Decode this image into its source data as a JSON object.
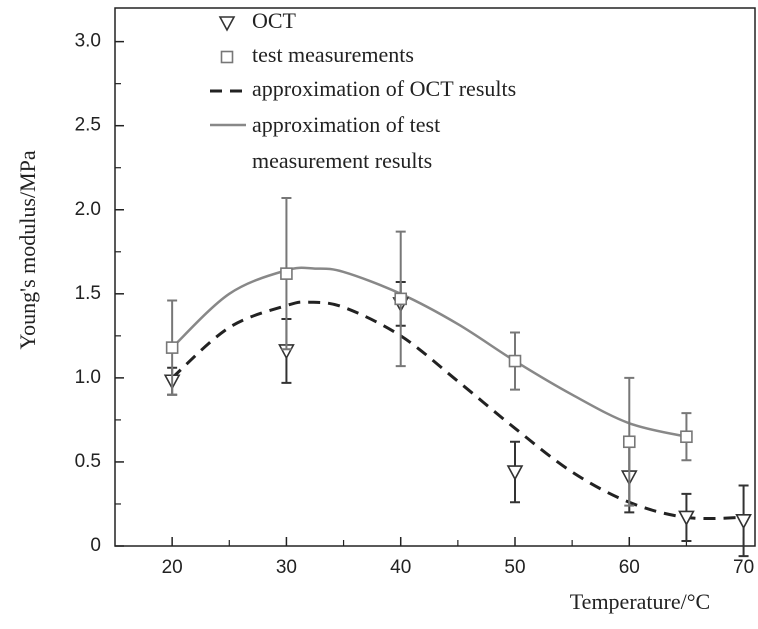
{
  "chart_data": {
    "type": "scatter",
    "xlabel": "Temperature/°C",
    "ylabel": "Young's modulus/MPa",
    "xlim": [
      15,
      71
    ],
    "ylim": [
      0,
      3.2
    ],
    "xticks": [
      20,
      30,
      40,
      50,
      60,
      70
    ],
    "xminor": [
      25,
      35,
      45,
      55,
      65
    ],
    "yticks": [
      0,
      0.5,
      {
        "value": 1,
        "label": "1.0"
      },
      1.5,
      {
        "value": 2,
        "label": "2.0"
      },
      2.5,
      {
        "value": 3,
        "label": "3.0"
      }
    ],
    "yminor": [
      0.25,
      0.75,
      1.25,
      1.75,
      2.25,
      2.75
    ],
    "legend": "upper center",
    "series": [
      {
        "name": "OCT",
        "marker": "triangle",
        "color": "#333333",
        "x": [
          20,
          30,
          40,
          50,
          60,
          65,
          70
        ],
        "values": [
          0.98,
          1.16,
          1.44,
          0.44,
          0.41,
          0.17,
          0.15
        ],
        "errors": [
          0.08,
          0.19,
          0.13,
          0.18,
          0.21,
          0.14,
          0.21
        ]
      },
      {
        "name": "test measurements",
        "marker": "square",
        "color": "#777777",
        "x": [
          20,
          30,
          40,
          50,
          60,
          65
        ],
        "values": [
          1.18,
          1.62,
          1.47,
          1.1,
          0.62,
          0.65
        ],
        "errors": [
          0.28,
          0.45,
          0.4,
          0.17,
          0.38,
          0.14
        ]
      },
      {
        "name": "approximation of OCT results",
        "line": "dashed",
        "color": "#222222",
        "x": [
          20,
          25,
          30,
          32,
          35,
          40,
          45,
          50,
          55,
          60,
          65,
          70
        ],
        "values": [
          1.0,
          1.3,
          1.43,
          1.45,
          1.42,
          1.25,
          0.98,
          0.7,
          0.44,
          0.26,
          0.17,
          0.17
        ]
      },
      {
        "name": "approximation of test measurement results",
        "line": "solid",
        "color": "#888888",
        "x": [
          20,
          25,
          30,
          32.5,
          35,
          40,
          45,
          50,
          55,
          60,
          65
        ],
        "values": [
          1.18,
          1.5,
          1.64,
          1.65,
          1.63,
          1.5,
          1.32,
          1.1,
          0.9,
          0.73,
          0.65
        ]
      }
    ]
  }
}
